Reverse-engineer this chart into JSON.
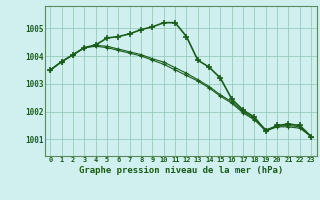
{
  "title": "Graphe pression niveau de la mer (hPa)",
  "background_color": "#cff0ee",
  "grid_color": "#99ccbb",
  "line_color": "#1a5c1a",
  "border_color": "#5a8a5a",
  "x_labels": [
    "0",
    "1",
    "2",
    "3",
    "4",
    "5",
    "6",
    "7",
    "8",
    "9",
    "10",
    "11",
    "12",
    "13",
    "14",
    "15",
    "16",
    "17",
    "18",
    "19",
    "20",
    "21",
    "22",
    "23"
  ],
  "ylim": [
    1000.4,
    1005.8
  ],
  "yticks": [
    1001,
    1002,
    1003,
    1004,
    1005
  ],
  "series1": [
    1003.5,
    1003.8,
    1004.05,
    1004.3,
    1004.4,
    1004.65,
    1004.7,
    1004.8,
    1004.95,
    1005.05,
    1005.2,
    1005.2,
    1004.7,
    1003.85,
    1003.6,
    1003.2,
    1002.45,
    1002.05,
    1001.8,
    1001.3,
    1001.5,
    1001.55,
    1001.5,
    1001.1
  ],
  "series2": [
    1003.5,
    1003.8,
    1004.05,
    1004.3,
    1004.35,
    1004.3,
    1004.2,
    1004.1,
    1004.0,
    1003.85,
    1003.7,
    1003.5,
    1003.3,
    1003.1,
    1002.85,
    1002.55,
    1002.3,
    1001.95,
    1001.7,
    1001.3,
    1001.45,
    1001.45,
    1001.4,
    1001.1
  ],
  "series3": [
    1003.5,
    1003.8,
    1004.05,
    1004.3,
    1004.38,
    1004.35,
    1004.25,
    1004.15,
    1004.05,
    1003.9,
    1003.78,
    1003.58,
    1003.38,
    1003.15,
    1002.9,
    1002.6,
    1002.35,
    1002.0,
    1001.75,
    1001.35,
    1001.47,
    1001.5,
    1001.45,
    1001.1
  ]
}
